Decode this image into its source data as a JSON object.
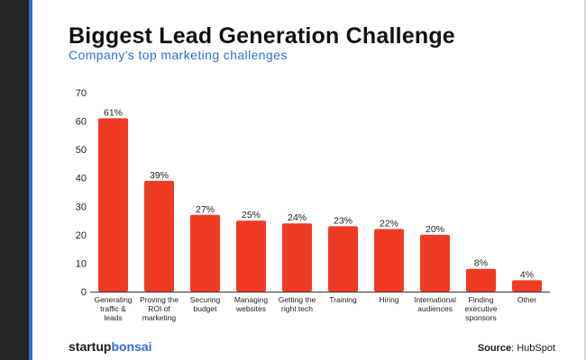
{
  "chart_data": {
    "type": "bar",
    "title": "Biggest Lead Generation Challenge",
    "subtitle": "Company's top marketing challenges",
    "categories": [
      [
        "Generating",
        "traffic &",
        "leads"
      ],
      [
        "Proving the",
        "ROI of",
        "marketing"
      ],
      [
        "Securing",
        "budget"
      ],
      [
        "Managing",
        "websites"
      ],
      [
        "Getting the",
        "right tech"
      ],
      [
        "Training"
      ],
      [
        "Hiring"
      ],
      [
        "International",
        "audiences"
      ],
      [
        "Finding",
        "executive",
        "sponsors"
      ],
      [
        "Other"
      ]
    ],
    "values": [
      61,
      39,
      27,
      25,
      24,
      23,
      22,
      20,
      8,
      4
    ],
    "value_labels": [
      "61%",
      "39%",
      "27%",
      "25%",
      "24%",
      "23%",
      "22%",
      "20%",
      "8%",
      "4%"
    ],
    "ylim": [
      0,
      70
    ],
    "yticks": [
      0,
      10,
      20,
      30,
      40,
      50,
      60,
      70
    ],
    "xlabel": "",
    "ylabel": "",
    "bar_color": "#f03b24",
    "grid": false,
    "legend": "none"
  },
  "footer": {
    "brand_part1": "startup",
    "brand_part2": "bonsai",
    "source_label": "Source",
    "source_sep": ": ",
    "source_value": "HubSpot"
  },
  "colors": {
    "accent": "#2f6fd6",
    "sidebar": "#262626",
    "bar": "#f03b24"
  }
}
